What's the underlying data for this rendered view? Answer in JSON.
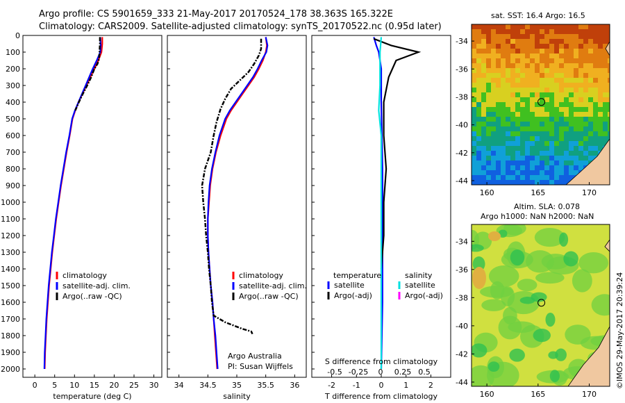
{
  "header": {
    "line1": "Argo profile: CS 5901659_333 21-May-2017 20170524_178 38.363S 165.322E",
    "line2": "Climatology: CARS2009. Satellite-adjusted climatology: synTS_20170522.nc (0.95d later)"
  },
  "chart_data": [
    {
      "type": "line",
      "xlabel": "temperature (deg C)",
      "ylabel": "",
      "xlim": [
        -3,
        32
      ],
      "ylim": [
        2050,
        0
      ],
      "x_ticks": [
        "0",
        "5",
        "10",
        "15",
        "20",
        "25",
        "30"
      ],
      "y_ticks": [
        "0",
        "100",
        "200",
        "300",
        "400",
        "500",
        "600",
        "700",
        "800",
        "900",
        "1000",
        "1100",
        "1200",
        "1300",
        "1400",
        "1500",
        "1600",
        "1700",
        "1800",
        "1900",
        "2000"
      ],
      "legend": [
        "climatology",
        "satellite-adj. clim.",
        "Argo(..raw -QC)"
      ],
      "series": [
        {
          "name": "climatology",
          "color": "#ff0000",
          "points": [
            [
              17.0,
              10
            ],
            [
              17.0,
              50
            ],
            [
              16.8,
              100
            ],
            [
              16.0,
              150
            ],
            [
              15.0,
              200
            ],
            [
              14.0,
              250
            ],
            [
              13.0,
              300
            ],
            [
              12.0,
              350
            ],
            [
              11.0,
              400
            ],
            [
              10.2,
              450
            ],
            [
              9.5,
              500
            ],
            [
              8.8,
              600
            ],
            [
              8.0,
              700
            ],
            [
              7.3,
              800
            ],
            [
              6.6,
              900
            ],
            [
              6.0,
              1000
            ],
            [
              5.4,
              1100
            ],
            [
              4.9,
              1200
            ],
            [
              4.4,
              1300
            ],
            [
              4.0,
              1400
            ],
            [
              3.6,
              1500
            ],
            [
              3.3,
              1600
            ],
            [
              3.0,
              1700
            ],
            [
              2.8,
              1800
            ],
            [
              2.6,
              1900
            ],
            [
              2.5,
              2000
            ]
          ]
        },
        {
          "name": "satellite-adj. clim.",
          "color": "#0000ff",
          "points": [
            [
              16.5,
              10
            ],
            [
              16.6,
              60
            ],
            [
              16.5,
              100
            ],
            [
              15.6,
              150
            ],
            [
              14.6,
              200
            ],
            [
              13.7,
              250
            ],
            [
              12.8,
              300
            ],
            [
              11.9,
              350
            ],
            [
              11.0,
              400
            ],
            [
              10.1,
              450
            ],
            [
              9.4,
              500
            ],
            [
              8.7,
              600
            ],
            [
              7.9,
              700
            ],
            [
              7.2,
              800
            ],
            [
              6.5,
              900
            ],
            [
              5.9,
              1000
            ],
            [
              5.3,
              1100
            ],
            [
              4.8,
              1200
            ],
            [
              4.3,
              1300
            ],
            [
              3.9,
              1400
            ],
            [
              3.5,
              1500
            ],
            [
              3.2,
              1600
            ],
            [
              2.9,
              1700
            ],
            [
              2.7,
              1800
            ],
            [
              2.5,
              1900
            ],
            [
              2.4,
              2000
            ]
          ]
        },
        {
          "name": "Argo(..raw -QC)",
          "color": "#000000",
          "points": [
            [
              16.4,
              10
            ],
            [
              16.4,
              50
            ],
            [
              16.3,
              100
            ],
            [
              16.2,
              140
            ],
            [
              15.8,
              170
            ],
            [
              15.0,
              200
            ],
            [
              14.2,
              250
            ],
            [
              13.2,
              300
            ],
            [
              12.1,
              350
            ],
            [
              11.1,
              400
            ],
            [
              10.2,
              450
            ]
          ]
        }
      ]
    },
    {
      "type": "line",
      "xlabel": "salinity",
      "xlim": [
        33.8,
        36.2
      ],
      "ylim": [
        2050,
        0
      ],
      "x_ticks": [
        "34",
        "34.5",
        "35",
        "35.5",
        "36"
      ],
      "legend": [
        "climatology",
        "satellite-adj. clim.",
        "Argo(..raw -QC)"
      ],
      "annotation": [
        "Argo Australia",
        "PI: Susan Wijffels"
      ],
      "series": [
        {
          "name": "climatology",
          "color": "#ff0000",
          "points": [
            [
              35.5,
              10
            ],
            [
              35.52,
              60
            ],
            [
              35.5,
              100
            ],
            [
              35.45,
              150
            ],
            [
              35.38,
              200
            ],
            [
              35.3,
              250
            ],
            [
              35.2,
              300
            ],
            [
              35.1,
              350
            ],
            [
              35.0,
              400
            ],
            [
              34.9,
              450
            ],
            [
              34.82,
              500
            ],
            [
              34.72,
              600
            ],
            [
              34.64,
              700
            ],
            [
              34.58,
              800
            ],
            [
              34.54,
              900
            ],
            [
              34.52,
              1000
            ],
            [
              34.5,
              1100
            ],
            [
              34.5,
              1200
            ],
            [
              34.51,
              1300
            ],
            [
              34.53,
              1400
            ],
            [
              34.55,
              1500
            ],
            [
              34.58,
              1600
            ],
            [
              34.6,
              1700
            ],
            [
              34.62,
              1800
            ],
            [
              34.64,
              1900
            ],
            [
              34.66,
              2000
            ]
          ]
        },
        {
          "name": "satellite-adj. clim.",
          "color": "#0000ff",
          "points": [
            [
              35.5,
              10
            ],
            [
              35.53,
              60
            ],
            [
              35.51,
              100
            ],
            [
              35.43,
              150
            ],
            [
              35.36,
              200
            ],
            [
              35.28,
              250
            ],
            [
              35.18,
              300
            ],
            [
              35.08,
              350
            ],
            [
              34.98,
              400
            ],
            [
              34.88,
              450
            ],
            [
              34.8,
              500
            ],
            [
              34.7,
              600
            ],
            [
              34.63,
              700
            ],
            [
              34.57,
              800
            ],
            [
              34.53,
              900
            ],
            [
              34.51,
              1000
            ],
            [
              34.5,
              1100
            ],
            [
              34.5,
              1200
            ],
            [
              34.51,
              1300
            ],
            [
              34.53,
              1400
            ],
            [
              34.55,
              1500
            ],
            [
              34.58,
              1600
            ],
            [
              34.6,
              1700
            ],
            [
              34.63,
              1800
            ],
            [
              34.65,
              1900
            ],
            [
              34.67,
              2000
            ]
          ]
        },
        {
          "name": "Argo(..raw -QC)",
          "color": "#000000",
          "points": [
            [
              35.42,
              20
            ],
            [
              35.42,
              80
            ],
            [
              35.38,
              120
            ],
            [
              35.3,
              170
            ],
            [
              35.2,
              220
            ],
            [
              35.05,
              270
            ],
            [
              34.9,
              320
            ],
            [
              34.8,
              380
            ],
            [
              34.72,
              440
            ],
            [
              34.65,
              520
            ],
            [
              34.6,
              600
            ],
            [
              34.55,
              700
            ],
            [
              34.45,
              800
            ],
            [
              34.4,
              900
            ],
            [
              34.42,
              1000
            ],
            [
              34.45,
              1100
            ],
            [
              34.47,
              1200
            ],
            [
              34.5,
              1300
            ],
            [
              34.52,
              1400
            ],
            [
              34.55,
              1500
            ],
            [
              34.57,
              1600
            ],
            [
              34.6,
              1680
            ],
            [
              34.8,
              1720
            ],
            [
              35.1,
              1760
            ],
            [
              35.25,
              1775
            ],
            [
              35.27,
              1790
            ]
          ]
        }
      ]
    },
    {
      "type": "line",
      "xlabel_bottom": "T difference from climatology",
      "xlabel_top": "S difference from climatology",
      "xlim": [
        -2.8,
        2.8
      ],
      "ylim": [
        2050,
        0
      ],
      "x_ticks": [
        "-2",
        "-1",
        "0",
        "1",
        "2"
      ],
      "x_ticks_top": [
        "-0.5",
        "-0.25",
        "0",
        "0.25",
        "0.5"
      ],
      "legend_headers": [
        "temperature",
        "salinity"
      ],
      "legend": [
        "satellite",
        "Argo(-adj)",
        "satellite",
        "Argo(-adj)"
      ],
      "series": [
        {
          "name": "satellite",
          "color": "#0000ff",
          "points": [
            [
              -0.3,
              10
            ],
            [
              -0.2,
              60
            ],
            [
              -0.1,
              100
            ],
            [
              0.0,
              200
            ],
            [
              0.0,
              400
            ],
            [
              0.05,
              800
            ],
            [
              0.05,
              1200
            ],
            [
              0.05,
              1600
            ],
            [
              0.0,
              2000
            ]
          ]
        },
        {
          "name": "Argo(-adj)",
          "color": "#000000",
          "points": [
            [
              -0.3,
              20
            ],
            [
              0.4,
              60
            ],
            [
              1.5,
              100
            ],
            [
              0.6,
              150
            ],
            [
              0.3,
              250
            ],
            [
              0.1,
              400
            ],
            [
              0.1,
              600
            ],
            [
              0.2,
              800
            ],
            [
              0.1,
              1000
            ],
            [
              0.1,
              1200
            ],
            [
              0.0,
              1400
            ]
          ]
        },
        {
          "name": "satellite",
          "color": "#00e0e0",
          "points": [
            [
              0.0,
              10
            ],
            [
              -0.05,
              100
            ],
            [
              -0.05,
              300
            ],
            [
              -0.1,
              450
            ],
            [
              0.0,
              600
            ],
            [
              0.0,
              1200
            ],
            [
              0.0,
              2000
            ]
          ]
        },
        {
          "name": "Argo(-adj)",
          "color": "#ff00ff",
          "points": []
        }
      ]
    }
  ],
  "maps": {
    "sst_caption": "sat. SST: 16.4 Argo: 16.5",
    "sla_caption_1": "Altim. SLA: 0.078",
    "sla_caption_2": "Argo h1000: NaN h2000: NaN",
    "lon_ticks": [
      "160",
      "165",
      "170"
    ],
    "lat_ticks": [
      "-34",
      "-36",
      "-38",
      "-40",
      "-42",
      "-44"
    ],
    "lon_range": [
      158.5,
      172
    ],
    "lat_range": [
      -44.3,
      -32.8
    ],
    "float_position": {
      "lon": 165.322,
      "lat": -38.363
    },
    "sst_colors": [
      "#c0400a",
      "#e07c10",
      "#f0b020",
      "#d8d020",
      "#40c020",
      "#10a080",
      "#10a0d8",
      "#1060e0"
    ],
    "sla_colors": [
      "#d0e040",
      "#70d040",
      "#30c050",
      "#e0b040"
    ],
    "land_color": "#f0c8a0"
  },
  "stamp": "©IMOS 29-May-2017 20:39:24"
}
